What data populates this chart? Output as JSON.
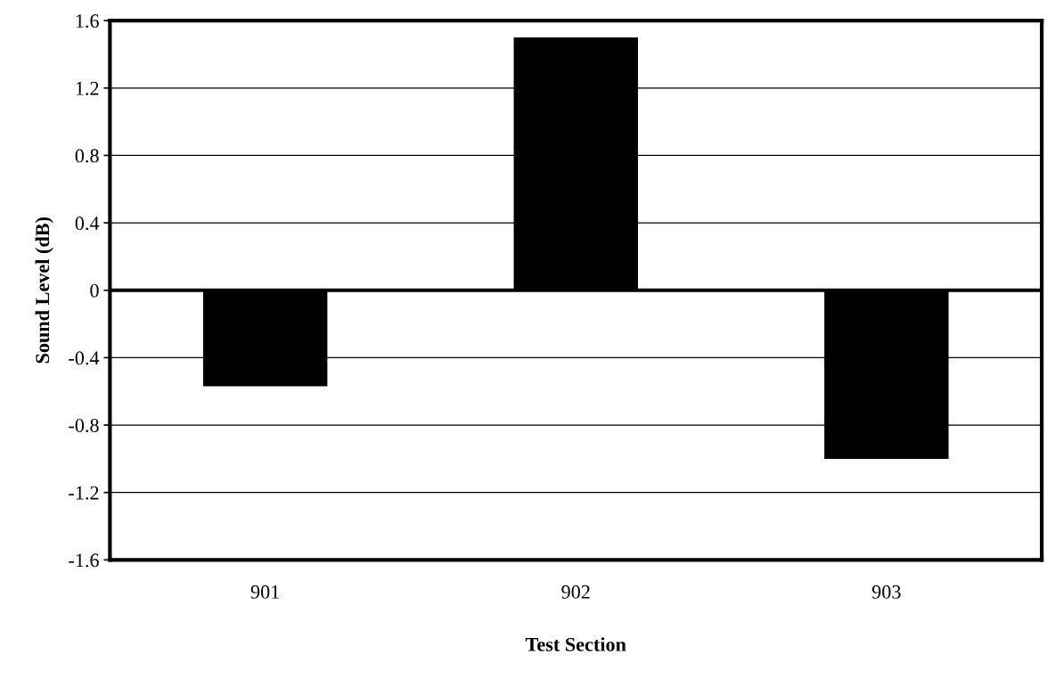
{
  "chart_data": {
    "type": "bar",
    "xlabel": "Test Section",
    "ylabel": "Sound Level (dB)",
    "categories": [
      "901",
      "902",
      "903"
    ],
    "values": [
      -0.57,
      1.5,
      -1.0
    ],
    "color": "#000000",
    "ylim": [
      -1.6,
      1.6
    ],
    "yticks": [
      -1.6,
      -1.2,
      -0.8,
      -0.4,
      0,
      0.4,
      0.8,
      1.2,
      1.6
    ],
    "ref_lines": [
      {
        "axis": "y",
        "value": 0,
        "color": "#000000"
      }
    ],
    "grid": "y",
    "legend": false
  }
}
